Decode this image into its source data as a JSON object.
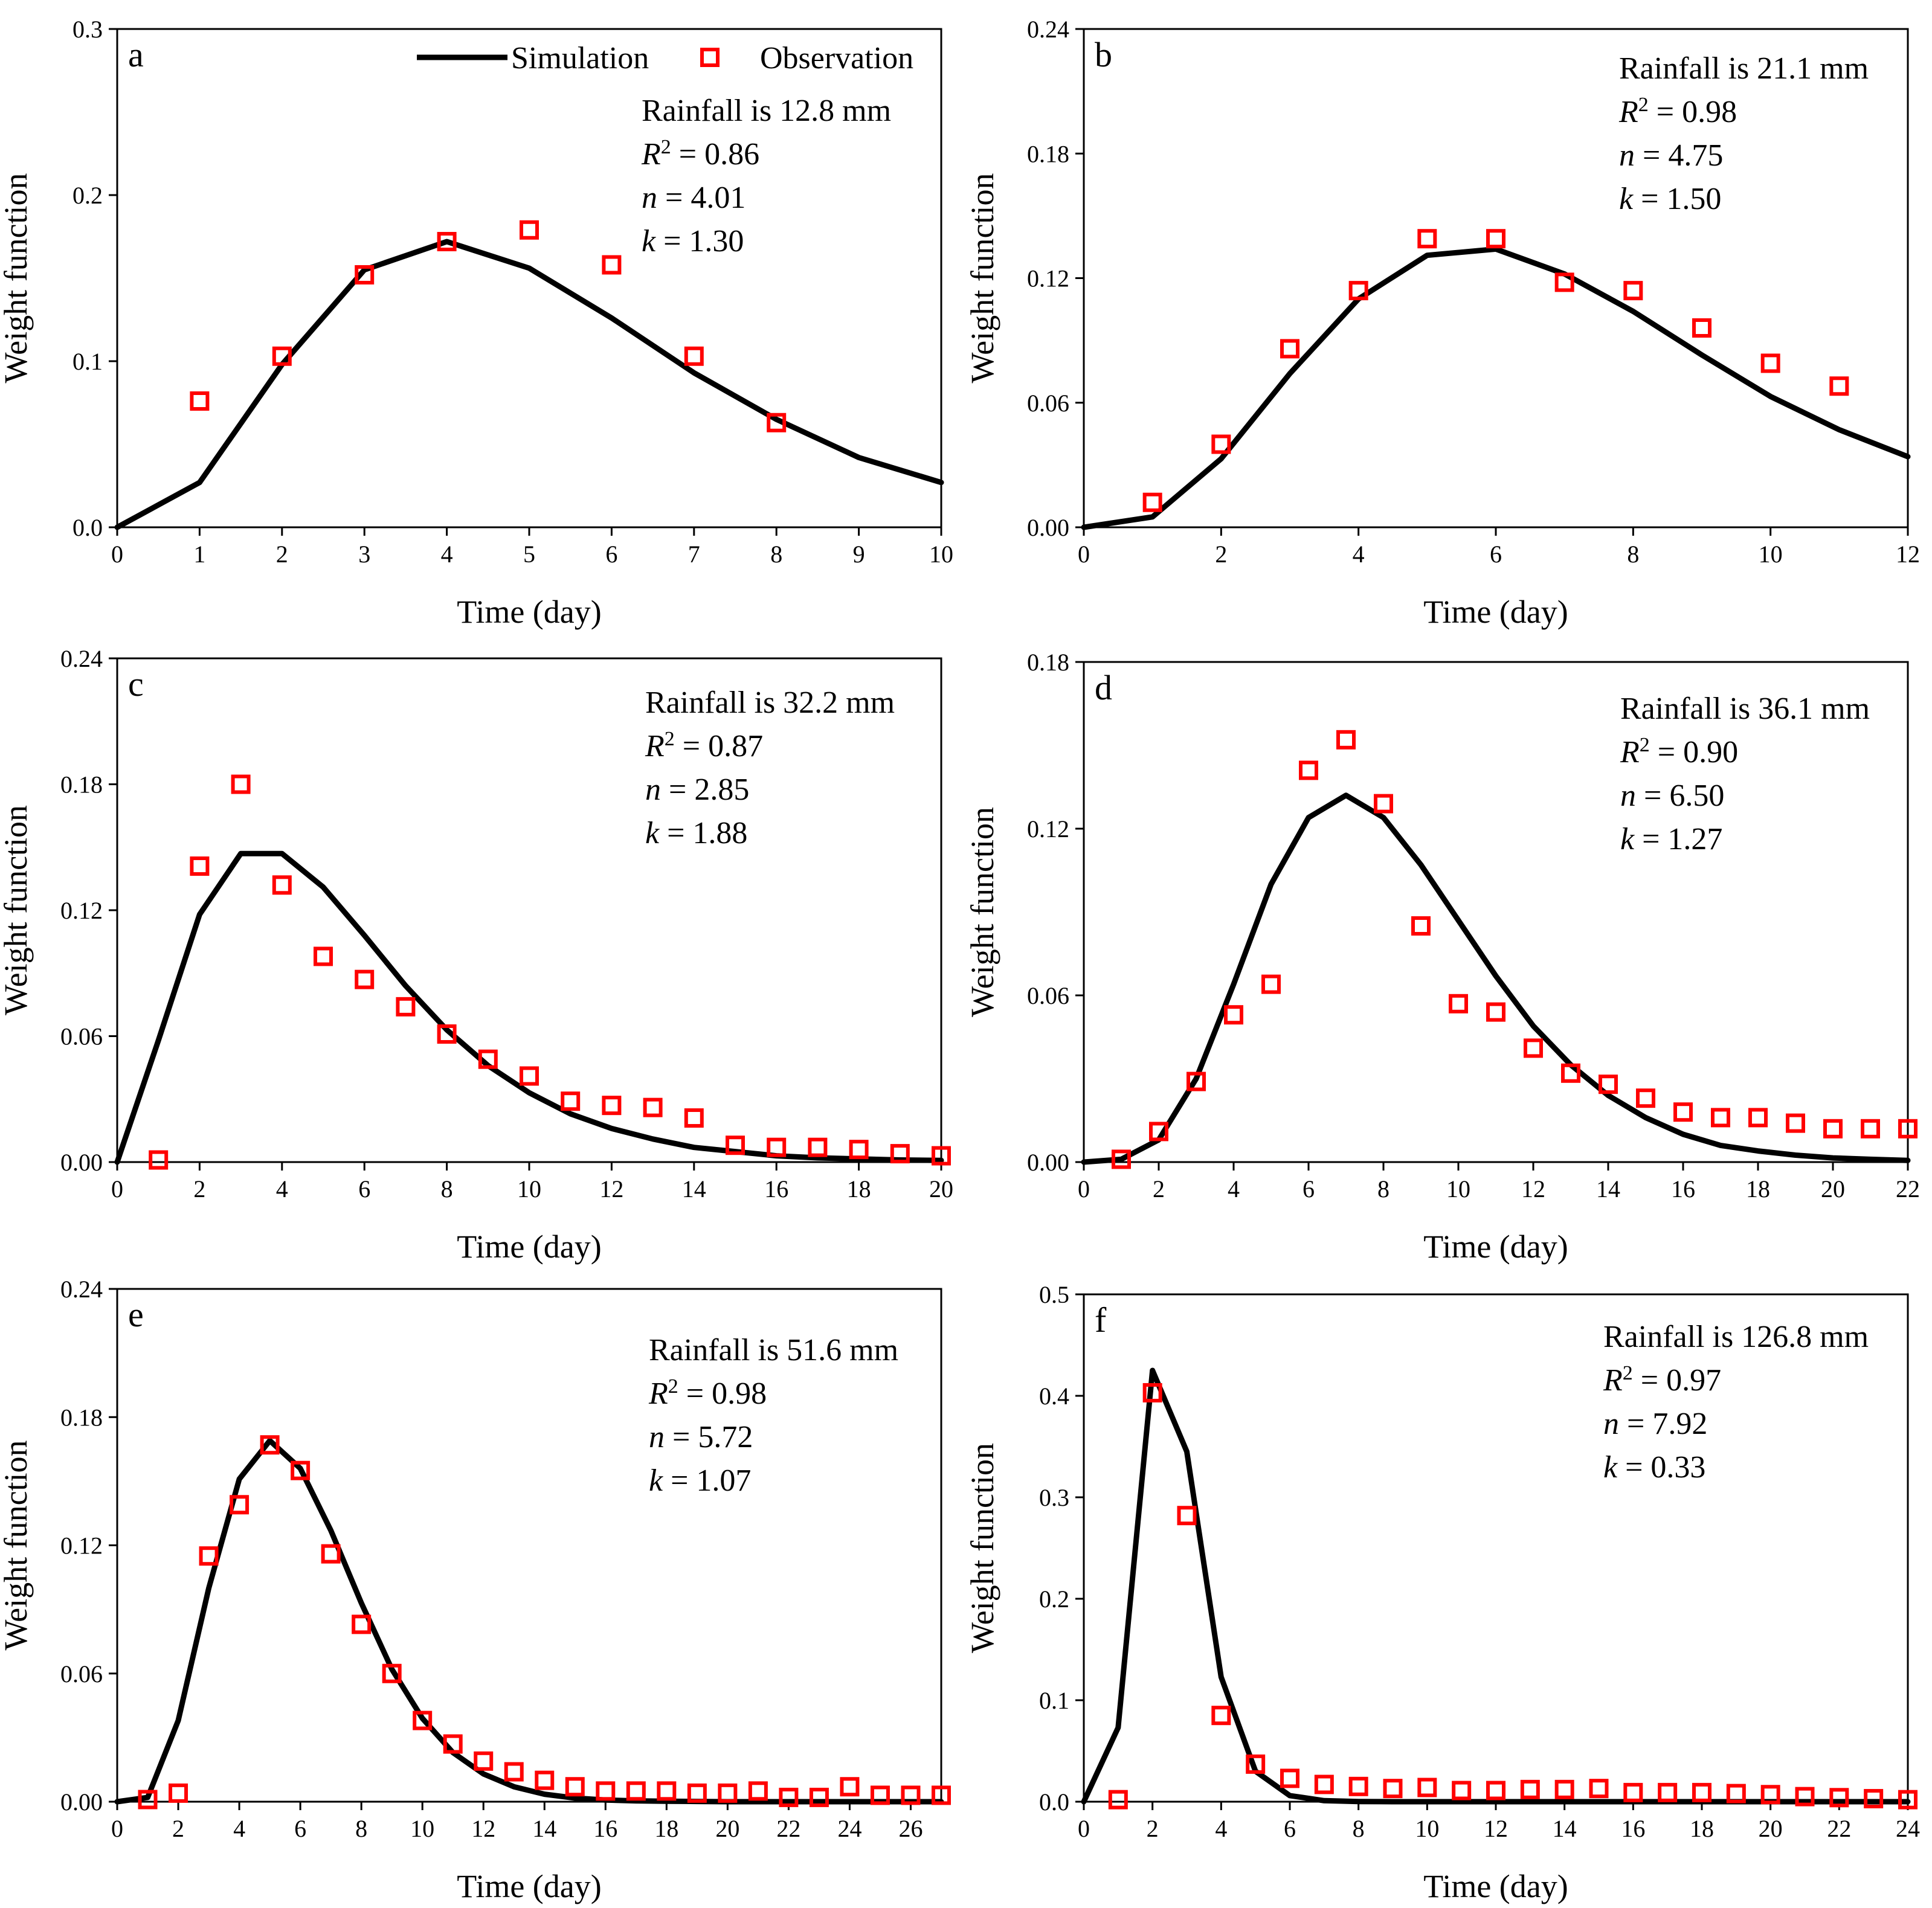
{
  "legend": {
    "simulation_label": "Simulation",
    "observation_label": "Observation",
    "simulation_color": "#000000",
    "observation_color": "#ff0000",
    "placement": "top-right of panel a"
  },
  "chart_data": [
    {
      "type": "line",
      "panel": "a",
      "xlabel": "Time (day)",
      "ylabel": "Weight function",
      "xlim": [
        0,
        10
      ],
      "ylim": [
        0,
        0.3
      ],
      "xticks": [
        0,
        1,
        2,
        3,
        4,
        5,
        6,
        7,
        8,
        9,
        10
      ],
      "yticks": [
        0.0,
        0.1,
        0.2,
        0.3
      ],
      "ytick_labels": [
        "0.0",
        "0.1",
        "0.2",
        "0.3"
      ],
      "annotations": [
        "Rainfall is 12.8 mm",
        "0.86",
        "4.01",
        "1.30"
      ],
      "series": [
        {
          "name": "Simulation",
          "x": [
            0,
            1,
            2,
            3,
            4,
            5,
            6,
            7,
            8,
            9,
            10
          ],
          "y": [
            0,
            0.027,
            0.098,
            0.155,
            0.172,
            0.156,
            0.126,
            0.093,
            0.065,
            0.042,
            0.027
          ]
        },
        {
          "name": "Observation",
          "x": [
            1,
            2,
            3,
            4,
            5,
            6,
            7,
            8
          ],
          "y": [
            0.076,
            0.103,
            0.152,
            0.172,
            0.179,
            0.158,
            0.103,
            0.063
          ]
        }
      ]
    },
    {
      "type": "line",
      "panel": "b",
      "xlabel": "Time (day)",
      "ylabel": "Weight function",
      "xlim": [
        0,
        12
      ],
      "ylim": [
        0,
        0.24
      ],
      "xticks": [
        0,
        2,
        4,
        6,
        8,
        10,
        12
      ],
      "yticks": [
        0.0,
        0.06,
        0.12,
        0.18,
        0.24
      ],
      "ytick_labels": [
        "0.00",
        "0.06",
        "0.12",
        "0.18",
        "0.24"
      ],
      "annotations": [
        "Rainfall is 21.1 mm",
        "0.98",
        "4.75",
        "1.50"
      ],
      "series": [
        {
          "name": "Simulation",
          "x": [
            0,
            1,
            2,
            3,
            4,
            5,
            6,
            7,
            8,
            9,
            10,
            11,
            12
          ],
          "y": [
            0,
            0.005,
            0.033,
            0.074,
            0.11,
            0.131,
            0.134,
            0.122,
            0.104,
            0.083,
            0.063,
            0.047,
            0.034
          ]
        },
        {
          "name": "Observation",
          "x": [
            1,
            2,
            3,
            4,
            5,
            6,
            7,
            8,
            9,
            10,
            11
          ],
          "y": [
            0.012,
            0.04,
            0.086,
            0.114,
            0.139,
            0.139,
            0.118,
            0.114,
            0.096,
            0.079,
            0.068
          ]
        }
      ]
    },
    {
      "type": "line",
      "panel": "c",
      "xlabel": "Time (day)",
      "ylabel": "Weight function",
      "xlim": [
        0,
        20
      ],
      "ylim": [
        0,
        0.24
      ],
      "xticks": [
        0,
        2,
        4,
        6,
        8,
        10,
        12,
        14,
        16,
        18,
        20
      ],
      "yticks": [
        0.0,
        0.06,
        0.12,
        0.18,
        0.24
      ],
      "ytick_labels": [
        "0.00",
        "0.06",
        "0.12",
        "0.18",
        "0.24"
      ],
      "annotations": [
        "Rainfall is 32.2 mm",
        "0.87",
        "2.85",
        "1.88"
      ],
      "series": [
        {
          "name": "Simulation",
          "x": [
            0,
            1,
            2,
            3,
            4,
            5,
            6,
            7,
            8,
            9,
            10,
            11,
            12,
            13,
            14,
            15,
            16,
            17,
            18,
            19,
            20
          ],
          "y": [
            0,
            0.058,
            0.118,
            0.147,
            0.147,
            0.131,
            0.108,
            0.084,
            0.063,
            0.046,
            0.033,
            0.023,
            0.016,
            0.011,
            0.007,
            0.005,
            0.003,
            0.002,
            0.0015,
            0.001,
            0.0008
          ]
        },
        {
          "name": "Observation",
          "x": [
            1,
            2,
            3,
            4,
            5,
            6,
            7,
            8,
            9,
            10,
            11,
            12,
            13,
            14,
            15,
            16,
            17,
            18,
            19,
            20
          ],
          "y": [
            0.001,
            0.141,
            0.18,
            0.132,
            0.098,
            0.087,
            0.074,
            0.061,
            0.049,
            0.041,
            0.029,
            0.027,
            0.026,
            0.021,
            0.008,
            0.007,
            0.007,
            0.006,
            0.004,
            0.003
          ]
        }
      ]
    },
    {
      "type": "line",
      "panel": "d",
      "xlabel": "Time (day)",
      "ylabel": "Weight function",
      "xlim": [
        0,
        22
      ],
      "ylim": [
        0,
        0.18
      ],
      "xticks": [
        0,
        2,
        4,
        6,
        8,
        10,
        12,
        14,
        16,
        18,
        20,
        22
      ],
      "yticks": [
        0.0,
        0.06,
        0.12,
        0.18
      ],
      "ytick_labels": [
        "0.00",
        "0.06",
        "0.12",
        "0.18"
      ],
      "annotations": [
        "Rainfall is 36.1 mm",
        "0.90",
        "6.50",
        "1.27"
      ],
      "series": [
        {
          "name": "Simulation",
          "x": [
            0,
            1,
            2,
            3,
            4,
            5,
            6,
            7,
            8,
            9,
            10,
            11,
            12,
            13,
            14,
            15,
            16,
            17,
            18,
            19,
            20,
            21,
            22
          ],
          "y": [
            0,
            0.001,
            0.008,
            0.03,
            0.064,
            0.1,
            0.124,
            0.132,
            0.124,
            0.107,
            0.087,
            0.067,
            0.049,
            0.035,
            0.024,
            0.016,
            0.01,
            0.006,
            0.004,
            0.0025,
            0.0015,
            0.001,
            0.0006
          ]
        },
        {
          "name": "Observation",
          "x": [
            1,
            2,
            3,
            4,
            5,
            6,
            7,
            8,
            9,
            10,
            11,
            12,
            13,
            14,
            15,
            16,
            17,
            18,
            19,
            20,
            21,
            22
          ],
          "y": [
            0.001,
            0.011,
            0.029,
            0.053,
            0.064,
            0.141,
            0.152,
            0.129,
            0.085,
            0.057,
            0.054,
            0.041,
            0.032,
            0.028,
            0.023,
            0.018,
            0.016,
            0.016,
            0.014,
            0.012,
            0.012,
            0.012
          ]
        }
      ]
    },
    {
      "type": "line",
      "panel": "e",
      "xlabel": "Time (day)",
      "ylabel": "Weight function",
      "xlim": [
        0,
        27
      ],
      "ylim": [
        0,
        0.24
      ],
      "xticks": [
        0,
        2,
        4,
        6,
        8,
        10,
        12,
        14,
        16,
        18,
        20,
        22,
        24,
        26
      ],
      "yticks": [
        0.0,
        0.06,
        0.12,
        0.18,
        0.24
      ],
      "ytick_labels": [
        "0.00",
        "0.06",
        "0.12",
        "0.18",
        "0.24"
      ],
      "annotations": [
        "Rainfall is 51.6 mm",
        "0.98",
        "5.72",
        "1.07"
      ],
      "series": [
        {
          "name": "Simulation",
          "x": [
            0,
            1,
            2,
            3,
            4,
            5,
            6,
            7,
            8,
            9,
            10,
            11,
            12,
            13,
            14,
            15,
            16,
            17,
            18,
            19,
            20,
            21,
            22,
            23,
            24,
            25,
            26,
            27
          ],
          "y": [
            0,
            0.002,
            0.038,
            0.1,
            0.151,
            0.169,
            0.156,
            0.127,
            0.093,
            0.062,
            0.039,
            0.023,
            0.013,
            0.007,
            0.0035,
            0.0017,
            0.0008,
            0.0004,
            0.0002,
            0.0001,
            0,
            0,
            0,
            0,
            0,
            0,
            0,
            0
          ]
        },
        {
          "name": "Observation",
          "x": [
            1,
            2,
            3,
            4,
            5,
            6,
            7,
            8,
            9,
            10,
            11,
            12,
            13,
            14,
            15,
            16,
            17,
            18,
            19,
            20,
            21,
            22,
            23,
            24,
            25,
            26,
            27
          ],
          "y": [
            0.001,
            0.004,
            0.115,
            0.139,
            0.167,
            0.155,
            0.116,
            0.083,
            0.06,
            0.038,
            0.027,
            0.019,
            0.014,
            0.01,
            0.007,
            0.005,
            0.005,
            0.005,
            0.004,
            0.004,
            0.005,
            0.002,
            0.002,
            0.007,
            0.003,
            0.003,
            0.003
          ]
        }
      ]
    },
    {
      "type": "line",
      "panel": "f",
      "xlabel": "Time (day)",
      "ylabel": "Weight function",
      "xlim": [
        0,
        24
      ],
      "ylim": [
        0,
        0.5
      ],
      "xticks": [
        0,
        2,
        4,
        6,
        8,
        10,
        12,
        14,
        16,
        18,
        20,
        22,
        24
      ],
      "yticks": [
        0.0,
        0.1,
        0.2,
        0.3,
        0.4,
        0.5
      ],
      "ytick_labels": [
        "0.0",
        "0.1",
        "0.2",
        "0.3",
        "0.4",
        "0.5"
      ],
      "annotations": [
        "Rainfall is 126.8 mm",
        "0.97",
        "7.92",
        "0.33"
      ],
      "series": [
        {
          "name": "Simulation",
          "x": [
            0,
            1,
            2,
            3,
            4,
            5,
            6,
            7,
            8,
            9,
            10,
            11,
            12,
            13,
            14,
            15,
            16,
            17,
            18,
            19,
            20,
            21,
            22,
            23,
            24
          ],
          "y": [
            0,
            0.073,
            0.425,
            0.345,
            0.123,
            0.03,
            0.006,
            0.001,
            0.0002,
            0,
            0,
            0,
            0,
            0,
            0,
            0,
            0,
            0,
            0,
            0,
            0,
            0,
            0,
            0,
            0
          ]
        },
        {
          "name": "Observation",
          "x": [
            1,
            2,
            3,
            4,
            5,
            6,
            7,
            8,
            9,
            10,
            11,
            12,
            13,
            14,
            15,
            16,
            17,
            18,
            19,
            20,
            21,
            22,
            23,
            24
          ],
          "y": [
            0.002,
            0.403,
            0.282,
            0.085,
            0.037,
            0.023,
            0.017,
            0.015,
            0.013,
            0.014,
            0.011,
            0.011,
            0.012,
            0.012,
            0.013,
            0.009,
            0.009,
            0.009,
            0.008,
            0.007,
            0.005,
            0.004,
            0.003,
            0.002
          ]
        }
      ]
    }
  ]
}
